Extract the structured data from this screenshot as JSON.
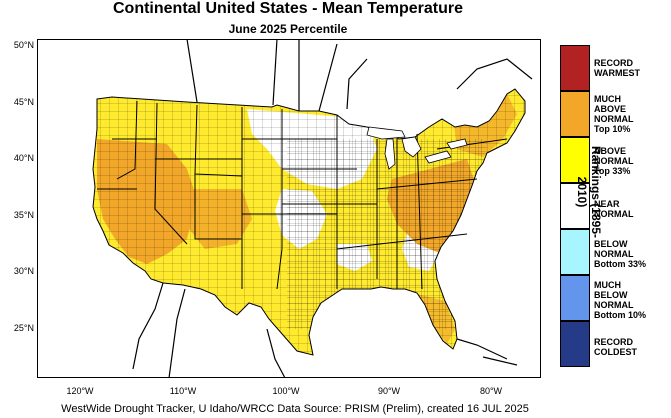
{
  "header": {
    "title": "Continental United States - Mean Temperature",
    "subtitle": "June 2025 Percentile"
  },
  "axes": {
    "latitudes": [
      "50°N",
      "45°N",
      "40°N",
      "35°N",
      "30°N",
      "25°N"
    ],
    "longitudes": [
      "120°W",
      "110°W",
      "100°W",
      "90°W",
      "80°W"
    ]
  },
  "legend": {
    "title": "Rankings (1895-2010)",
    "items": [
      {
        "label": "RECORD\nWARMEST",
        "color": "#b22222"
      },
      {
        "label": "MUCH\nABOVE\nNORMAL\nTop 10%",
        "color": "#f2a729"
      },
      {
        "label": "ABOVE\nNORMAL\nTop 33%",
        "color": "#ffff00"
      },
      {
        "label": "NEAR\nNORMAL",
        "color": "#ffffff"
      },
      {
        "label": "BELOW\nNORMAL\nBottom 33%",
        "color": "#a6f5ff"
      },
      {
        "label": "MUCH\nBELOW\nNORMAL\nBottom 10%",
        "color": "#6495ed"
      },
      {
        "label": "RECORD\nCOLDEST",
        "color": "#253b87"
      }
    ]
  },
  "footer": {
    "credit": "WestWide Drought Tracker, U Idaho/WRCC Data Source: PRISM (Prelim), created 16 JUL 2025"
  }
}
